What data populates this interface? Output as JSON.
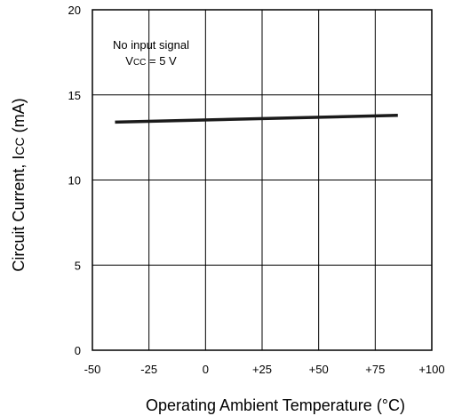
{
  "chart_data": {
    "type": "line",
    "xlabel": "Operating Ambient Temperature (°C)",
    "ylabel": {
      "main": "Circuit Current, I",
      "sub": "CC",
      "unit": " (mA)"
    },
    "xlim": [
      -50,
      100
    ],
    "ylim": [
      0,
      20
    ],
    "x_ticks": [
      -50,
      -25,
      0,
      25,
      50,
      75,
      100
    ],
    "x_tick_labels": [
      "-50",
      "-25",
      "0",
      "+25",
      "+50",
      "+75",
      "+100"
    ],
    "y_ticks": [
      0,
      5,
      10,
      15,
      20
    ],
    "y_tick_labels": [
      "0",
      "5",
      "10",
      "15",
      "20"
    ],
    "grid": true,
    "series": [
      {
        "x": [
          -40,
          85
        ],
        "y": [
          13.4,
          13.8
        ],
        "color": "#1a1a1a"
      }
    ],
    "annotation": {
      "line1": "No input signal",
      "line2_main": "V",
      "line2_sub": "CC",
      "line2_rest": " = 5 V"
    }
  }
}
